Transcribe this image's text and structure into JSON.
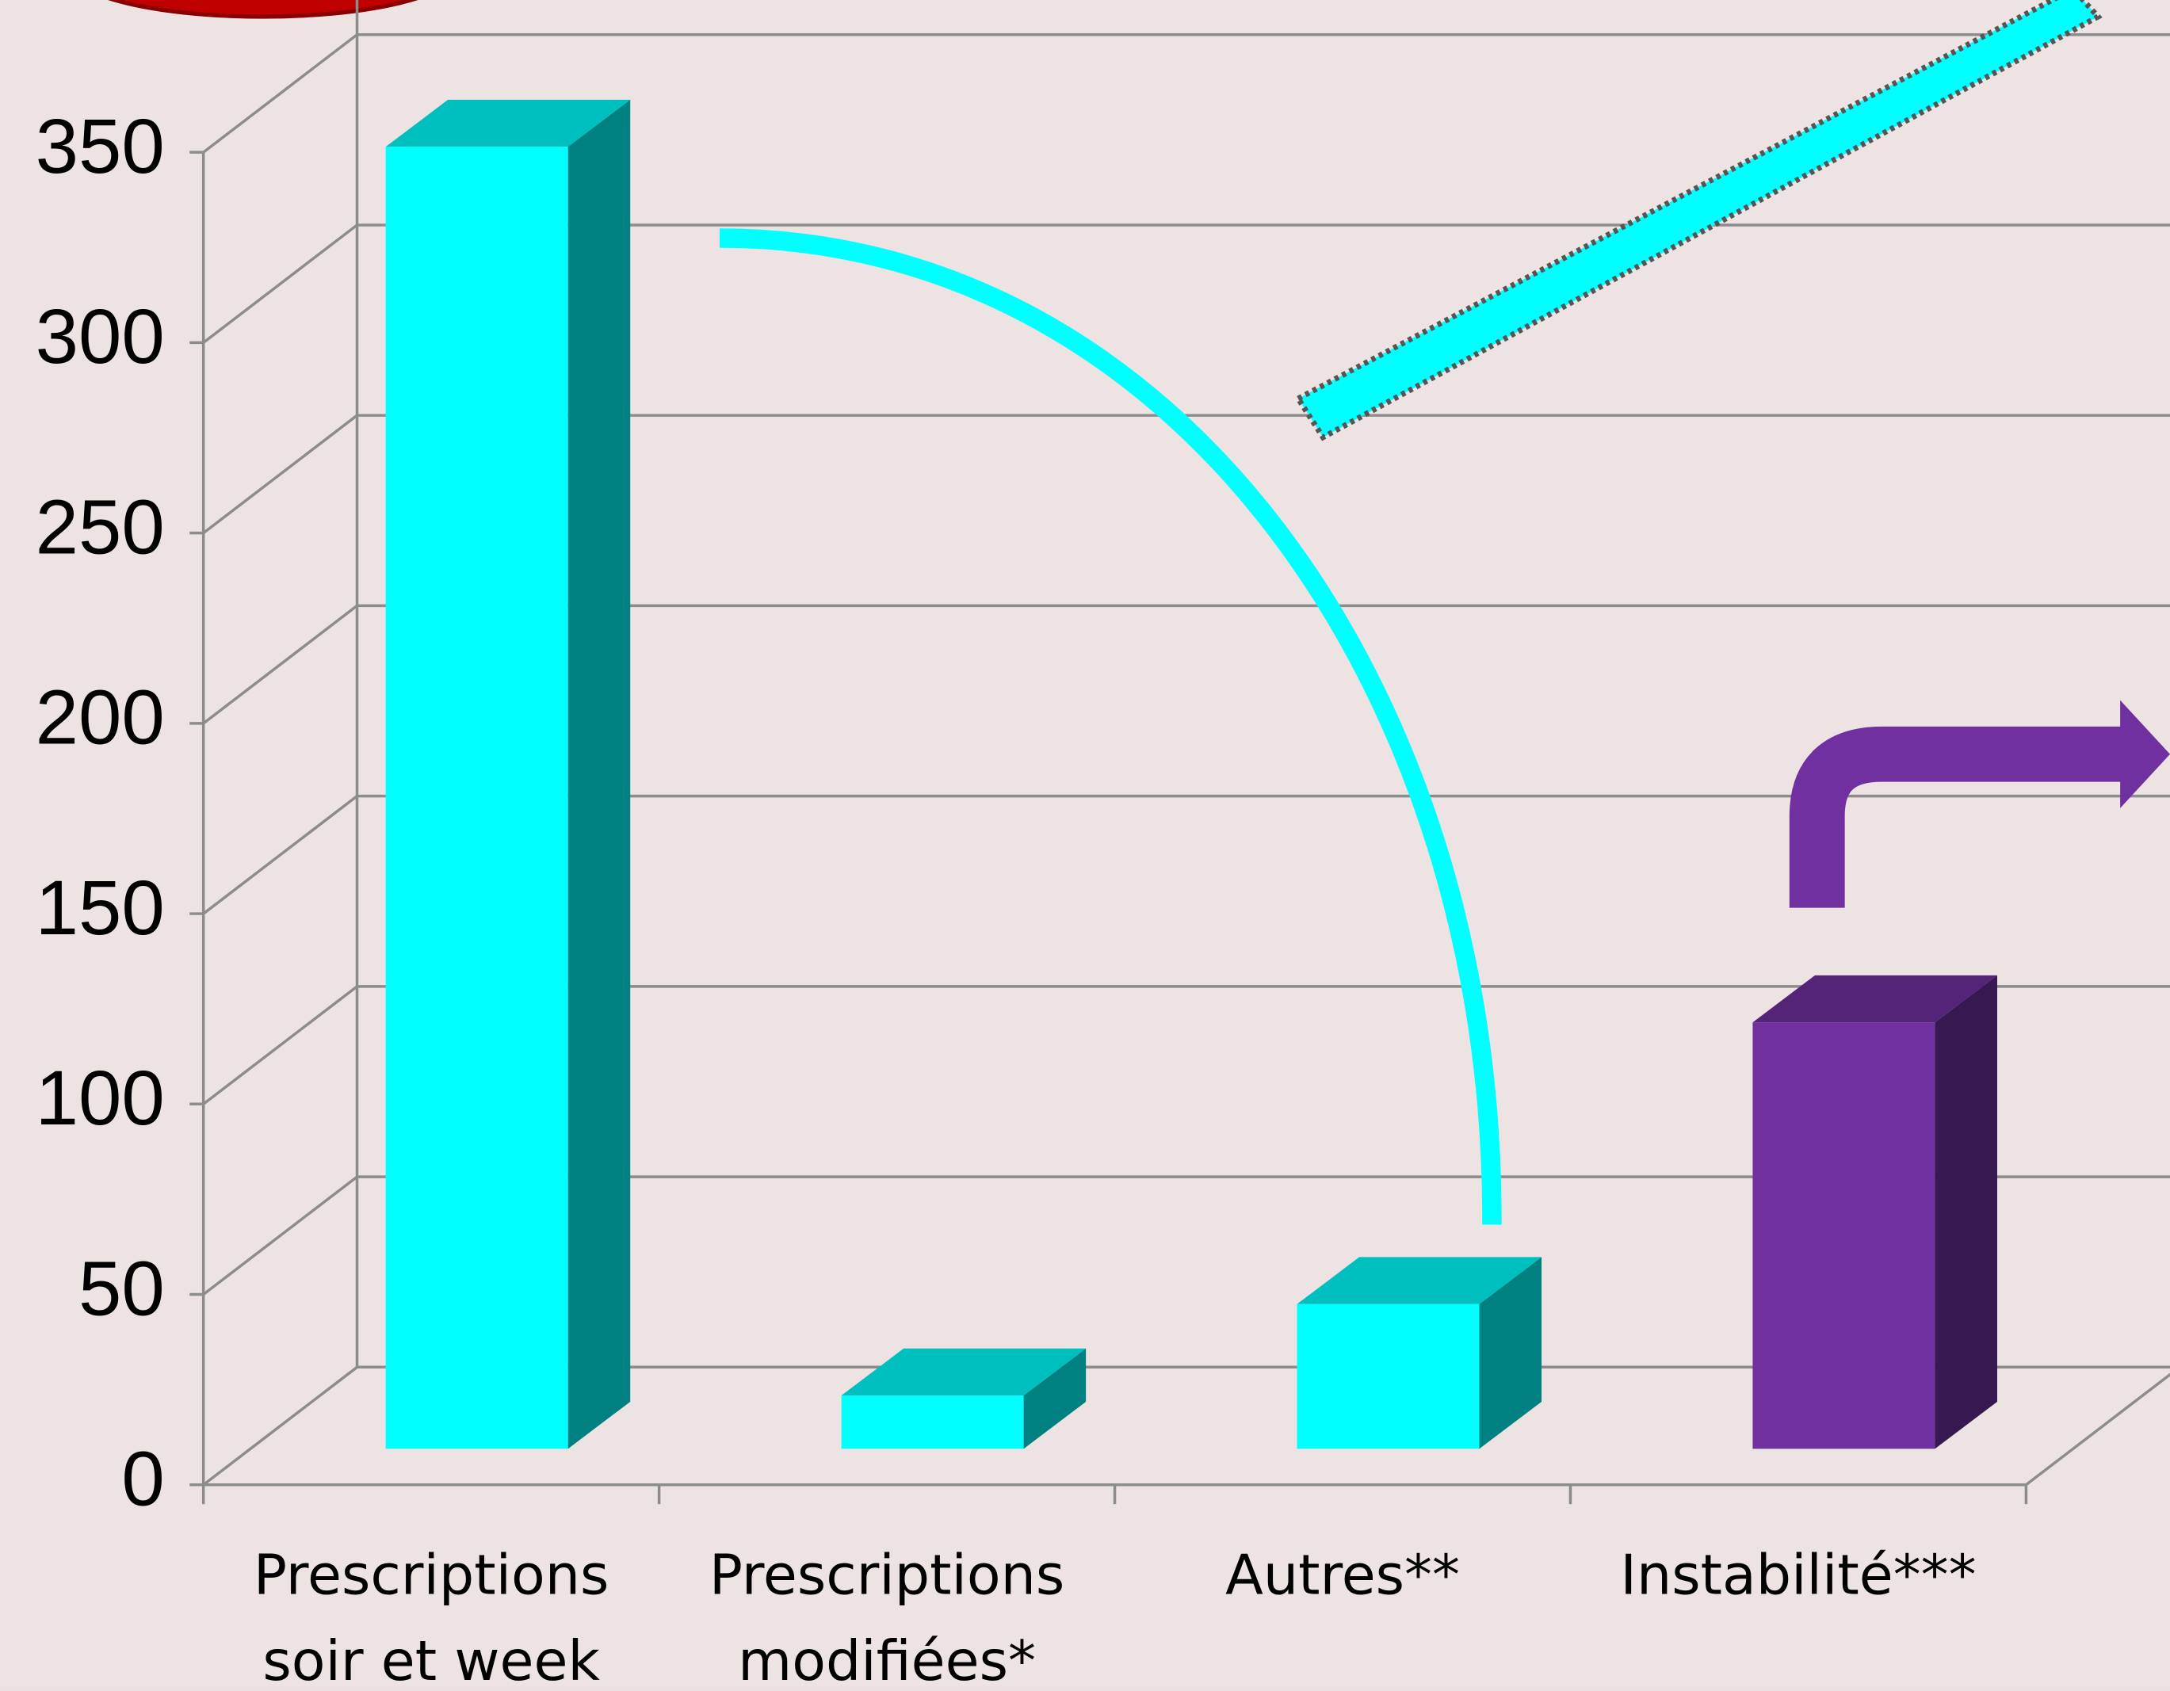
{
  "chart_data": {
    "type": "bar3d",
    "categories": [
      "Prescriptions soir et week",
      "Prescriptions modifiées*",
      "Autres**",
      "Instabilité***"
    ],
    "values": [
      342,
      14,
      38,
      112
    ],
    "colors": [
      "#00ffff",
      "#00ffff",
      "#00ffff",
      "#7030a0"
    ],
    "ylim": [
      0,
      350
    ],
    "yticks": [
      0,
      50,
      100,
      150,
      200,
      250,
      300,
      350
    ],
    "grid": true
  }
}
